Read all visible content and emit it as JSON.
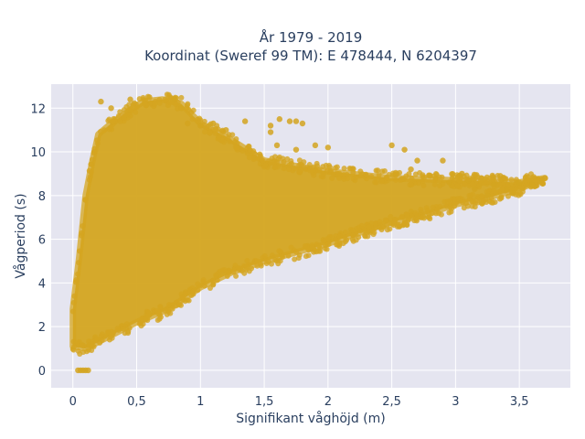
{
  "chart_data": {
    "type": "scatter",
    "title": [
      "År 1979 - 2019",
      "Koordinat (Sweref 99 TM): E 478444, N 6204397"
    ],
    "xlabel": "Signifikant våghöjd (m)",
    "ylabel": "Vågperiod (s)",
    "xlim": [
      -0.17,
      3.9
    ],
    "ylim": [
      -0.8,
      13.1
    ],
    "xticks": [
      0,
      0.5,
      1,
      1.5,
      2,
      2.5,
      3,
      3.5
    ],
    "xticklabels": [
      "0",
      "0,5",
      "1",
      "1,5",
      "2",
      "2,5",
      "3",
      "3,5"
    ],
    "yticks": [
      0,
      2,
      4,
      6,
      8,
      10,
      12
    ],
    "yticklabels": [
      "0",
      "2",
      "4",
      "6",
      "8",
      "10",
      "12"
    ],
    "grid": true,
    "point_color": "#D4A520",
    "background_color": "#E5E5F0",
    "envelope": {
      "upper": [
        [
          0.0,
          2.8
        ],
        [
          0.05,
          5.2
        ],
        [
          0.1,
          8.0
        ],
        [
          0.15,
          9.5
        ],
        [
          0.2,
          10.8
        ],
        [
          0.3,
          11.3
        ],
        [
          0.4,
          11.7
        ],
        [
          0.55,
          12.3
        ],
        [
          0.7,
          12.4
        ],
        [
          0.85,
          12.2
        ],
        [
          1.0,
          11.3
        ],
        [
          1.2,
          10.7
        ],
        [
          1.5,
          9.6
        ],
        [
          2.0,
          9.1
        ],
        [
          2.5,
          8.8
        ],
        [
          3.0,
          8.7
        ],
        [
          3.5,
          8.6
        ],
        [
          3.7,
          8.8
        ]
      ],
      "lower": [
        [
          0.0,
          1.1
        ],
        [
          0.1,
          1.0
        ],
        [
          0.3,
          1.6
        ],
        [
          0.5,
          2.2
        ],
        [
          0.75,
          2.8
        ],
        [
          1.0,
          3.8
        ],
        [
          1.25,
          4.5
        ],
        [
          1.5,
          5.0
        ],
        [
          1.75,
          5.4
        ],
        [
          2.0,
          5.8
        ],
        [
          2.25,
          6.3
        ],
        [
          2.5,
          6.8
        ],
        [
          2.75,
          7.1
        ],
        [
          3.0,
          7.6
        ],
        [
          3.25,
          7.9
        ],
        [
          3.5,
          8.3
        ],
        [
          3.7,
          8.8
        ]
      ]
    },
    "outliers": [
      [
        0.04,
        0.0
      ],
      [
        0.06,
        0.0
      ],
      [
        0.08,
        0.0
      ],
      [
        0.1,
        0.0
      ],
      [
        0.12,
        0.0
      ],
      [
        0.22,
        12.3
      ],
      [
        0.3,
        12.0
      ],
      [
        0.45,
        12.4
      ],
      [
        0.6,
        12.5
      ],
      [
        0.8,
        12.4
      ],
      [
        0.85,
        12.0
      ],
      [
        0.9,
        11.3
      ],
      [
        1.0,
        11.2
      ],
      [
        1.1,
        11.3
      ],
      [
        1.2,
        11.0
      ],
      [
        1.35,
        11.4
      ],
      [
        1.55,
        11.2
      ],
      [
        1.62,
        11.5
      ],
      [
        1.7,
        11.4
      ],
      [
        1.75,
        11.4
      ],
      [
        1.8,
        11.3
      ],
      [
        1.55,
        10.9
      ],
      [
        1.6,
        10.3
      ],
      [
        1.75,
        10.1
      ],
      [
        1.9,
        10.3
      ],
      [
        2.0,
        10.2
      ],
      [
        2.5,
        10.3
      ],
      [
        2.6,
        10.1
      ],
      [
        2.7,
        9.6
      ],
      [
        2.65,
        9.2
      ],
      [
        2.9,
        9.6
      ],
      [
        3.05,
        9.0
      ],
      [
        3.2,
        8.8
      ],
      [
        3.3,
        8.5
      ],
      [
        3.35,
        8.9
      ],
      [
        3.4,
        8.3
      ],
      [
        3.45,
        8.1
      ],
      [
        3.6,
        8.5
      ],
      [
        3.7,
        8.8
      ],
      [
        3.5,
        8.6
      ],
      [
        3.25,
        8.0
      ],
      [
        3.15,
        8.3
      ],
      [
        2.95,
        8.6
      ],
      [
        3.1,
        8.7
      ]
    ]
  }
}
